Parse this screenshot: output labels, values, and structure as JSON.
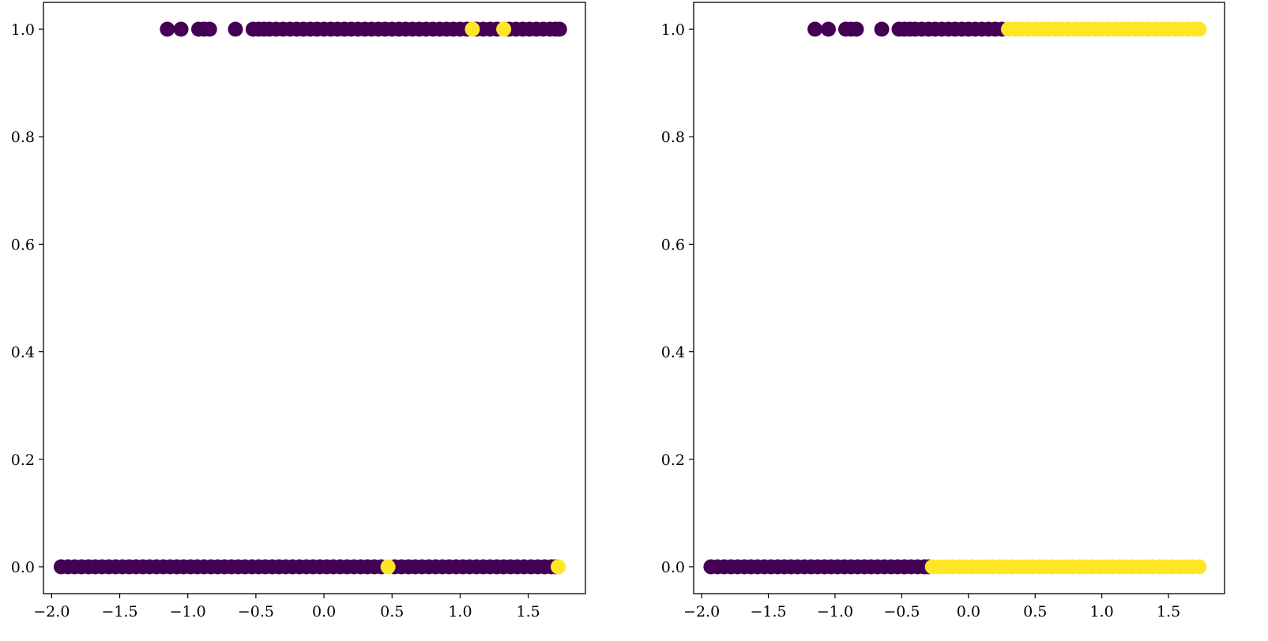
{
  "chart_data": [
    {
      "type": "scatter",
      "xlim": [
        -2.06,
        1.92
      ],
      "ylim": [
        -0.05,
        1.05
      ],
      "x_ticks": [
        -2.0,
        -1.5,
        -1.0,
        -0.5,
        0.0,
        0.5,
        1.0,
        1.5
      ],
      "x_tick_labels": [
        "−2.0",
        "−1.5",
        "−1.0",
        "−0.5",
        "0.0",
        "0.5",
        "1.0",
        "1.5"
      ],
      "y_ticks": [
        0.0,
        0.2,
        0.4,
        0.6,
        0.8,
        1.0
      ],
      "y_tick_labels": [
        "0.0",
        "0.2",
        "0.4",
        "0.6",
        "0.8",
        "1.0"
      ],
      "grid": false,
      "colors": {
        "class_0": "#440154",
        "class_1": "#fde725"
      },
      "points": {
        "y1": {
          "class_0_x": [
            -1.15,
            -1.05,
            -0.92,
            -0.88,
            -0.84,
            -0.65,
            -0.52,
            -0.48,
            -0.44,
            -0.4,
            -0.35,
            -0.3,
            -0.25,
            -0.2,
            -0.15,
            -0.1,
            -0.05,
            0.0,
            0.05,
            0.1,
            0.15,
            0.2,
            0.25,
            0.3,
            0.35,
            0.4,
            0.45,
            0.5,
            0.55,
            0.6,
            0.65,
            0.7,
            0.75,
            0.8,
            0.85,
            0.9,
            0.95,
            1.0,
            1.05,
            1.12,
            1.17,
            1.22,
            1.27,
            1.36,
            1.41,
            1.46,
            1.51,
            1.56,
            1.61,
            1.66,
            1.7,
            1.73
          ],
          "class_1_x": [
            1.09,
            1.32
          ]
        },
        "y0": {
          "class_0_x": [
            -1.93,
            -1.88,
            -1.83,
            -1.78,
            -1.73,
            -1.68,
            -1.63,
            -1.58,
            -1.53,
            -1.48,
            -1.43,
            -1.38,
            -1.33,
            -1.28,
            -1.23,
            -1.18,
            -1.13,
            -1.08,
            -1.03,
            -0.98,
            -0.93,
            -0.88,
            -0.83,
            -0.78,
            -0.73,
            -0.68,
            -0.63,
            -0.58,
            -0.53,
            -0.48,
            -0.43,
            -0.38,
            -0.33,
            -0.28,
            -0.23,
            -0.18,
            -0.13,
            -0.08,
            -0.03,
            0.02,
            0.07,
            0.12,
            0.17,
            0.22,
            0.27,
            0.32,
            0.37,
            0.42,
            0.52,
            0.57,
            0.62,
            0.67,
            0.72,
            0.77,
            0.82,
            0.87,
            0.92,
            0.97,
            1.02,
            1.07,
            1.12,
            1.17,
            1.22,
            1.27,
            1.32,
            1.37,
            1.42,
            1.47,
            1.52,
            1.57,
            1.62,
            1.67,
            1.7
          ],
          "class_1_x": [
            0.47,
            1.72
          ]
        }
      }
    },
    {
      "type": "scatter",
      "xlim": [
        -2.06,
        1.92
      ],
      "ylim": [
        -0.05,
        1.05
      ],
      "x_ticks": [
        -2.0,
        -1.5,
        -1.0,
        -0.5,
        0.0,
        0.5,
        1.0,
        1.5
      ],
      "x_tick_labels": [
        "−2.0",
        "−1.5",
        "−1.0",
        "−0.5",
        "0.0",
        "0.5",
        "1.0",
        "1.5"
      ],
      "y_ticks": [
        0.0,
        0.2,
        0.4,
        0.6,
        0.8,
        1.0
      ],
      "y_tick_labels": [
        "0.0",
        "0.2",
        "0.4",
        "0.6",
        "0.8",
        "1.0"
      ],
      "grid": false,
      "colors": {
        "class_0": "#440154",
        "class_1": "#fde725"
      },
      "points": {
        "y1": {
          "class_0_x": [
            -1.15,
            -1.05,
            -0.92,
            -0.88,
            -0.84,
            -0.65,
            -0.52,
            -0.48,
            -0.44,
            -0.4,
            -0.35,
            -0.3,
            -0.25,
            -0.2,
            -0.15,
            -0.1,
            -0.05,
            0.0,
            0.05,
            0.1,
            0.15,
            0.2,
            0.25
          ],
          "class_1_x": [
            0.3,
            0.35,
            0.4,
            0.45,
            0.5,
            0.55,
            0.6,
            0.65,
            0.7,
            0.75,
            0.8,
            0.85,
            0.9,
            0.95,
            1.0,
            1.05,
            1.1,
            1.15,
            1.2,
            1.25,
            1.3,
            1.35,
            1.4,
            1.45,
            1.5,
            1.55,
            1.6,
            1.65,
            1.7,
            1.73
          ]
        },
        "y0": {
          "class_0_x": [
            -1.93,
            -1.88,
            -1.83,
            -1.78,
            -1.73,
            -1.68,
            -1.63,
            -1.58,
            -1.53,
            -1.48,
            -1.43,
            -1.38,
            -1.33,
            -1.28,
            -1.23,
            -1.18,
            -1.13,
            -1.08,
            -1.03,
            -0.98,
            -0.93,
            -0.88,
            -0.83,
            -0.78,
            -0.73,
            -0.68,
            -0.63,
            -0.58,
            -0.53,
            -0.48,
            -0.43,
            -0.38,
            -0.33,
            -0.3
          ],
          "class_1_x": [
            -0.27,
            -0.22,
            -0.17,
            -0.12,
            -0.07,
            -0.02,
            0.03,
            0.08,
            0.13,
            0.18,
            0.23,
            0.28,
            0.33,
            0.38,
            0.43,
            0.48,
            0.53,
            0.58,
            0.63,
            0.68,
            0.73,
            0.78,
            0.83,
            0.88,
            0.93,
            0.98,
            1.03,
            1.08,
            1.13,
            1.18,
            1.23,
            1.28,
            1.33,
            1.38,
            1.43,
            1.48,
            1.53,
            1.58,
            1.63,
            1.68,
            1.73
          ]
        }
      }
    }
  ]
}
